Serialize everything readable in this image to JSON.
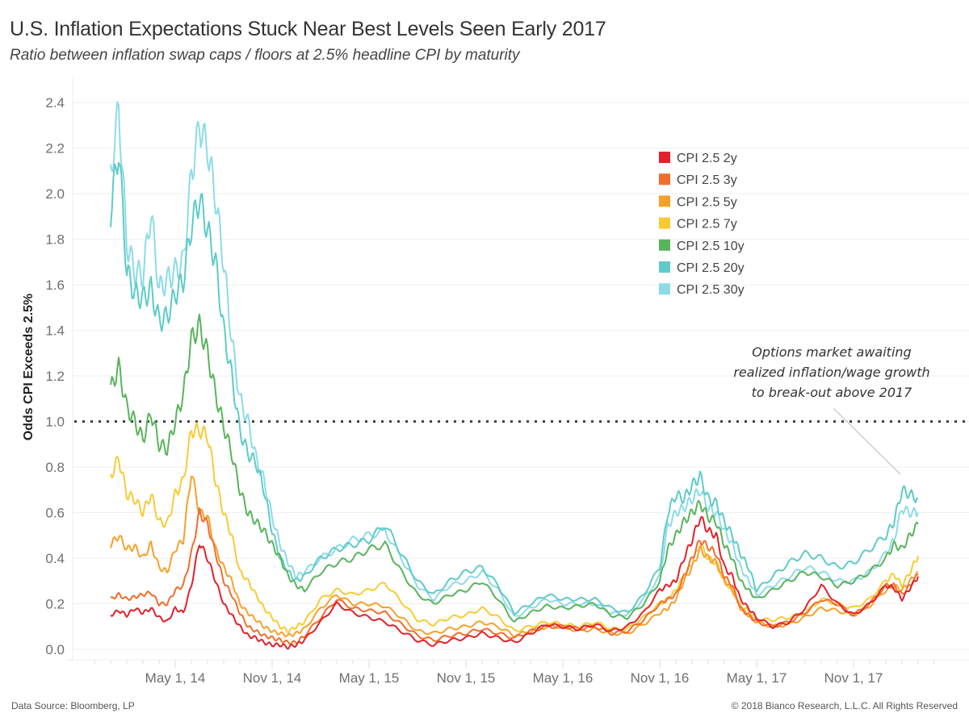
{
  "header": {
    "title": "U.S. Inflation Expectations Stuck Near Best Levels Seen Early 2017",
    "subtitle": "Ratio between inflation swap caps / floors at 2.5% headline CPI by maturity"
  },
  "footer": {
    "source": "Data Source: Bloomberg, LP",
    "copyright": "© 2018 Bianco Research, L.L.C. All Rights Reserved"
  },
  "chart_data": {
    "type": "line",
    "title": "U.S. Inflation Expectations Stuck Near Best Levels Seen Early 2017",
    "subtitle": "Ratio between inflation swap caps / floors at 2.5% headline CPI by maturity",
    "xlabel": "",
    "ylabel": "Odds CPI Exceeds 2.5%",
    "ylim": [
      0,
      2.4
    ],
    "yticks": [
      "0.0",
      "0.2",
      "0.4",
      "0.6",
      "0.8",
      "1.0",
      "1.2",
      "1.4",
      "1.6",
      "1.8",
      "2.0",
      "2.2",
      "2.4"
    ],
    "ytick_values": [
      0,
      0.2,
      0.4,
      0.6,
      0.8,
      1.0,
      1.2,
      1.4,
      1.6,
      1.8,
      2.0,
      2.2,
      2.4
    ],
    "xtick_labels": [
      "May 1, 14",
      "Nov 1, 14",
      "May 1, 15",
      "Nov 1, 15",
      "May 1, 16",
      "Nov 1, 16",
      "May 1, 17",
      "Nov 1, 17"
    ],
    "xtick_months": [
      4,
      10,
      16,
      22,
      28,
      34,
      40,
      46
    ],
    "xlim_months": [
      -0.5,
      51.5
    ],
    "x_unit": "months since Jan 2014",
    "grid": true,
    "legend_position": "top-right",
    "reference_line": {
      "value": 1.0,
      "style": "dotted"
    },
    "annotation": {
      "lines": [
        "Options market awaiting",
        "realized inflation/wage growth",
        "to break-out above 2017"
      ],
      "points_to": {
        "month": 49,
        "value": 0.68
      }
    },
    "x": [
      0,
      0.5,
      1,
      1.5,
      2,
      2.5,
      3,
      3.5,
      4,
      4.5,
      5,
      5.5,
      6,
      6.5,
      7,
      7.5,
      8,
      8.5,
      9,
      9.5,
      10,
      10.5,
      11,
      11.5,
      12,
      13,
      14,
      15,
      16,
      17,
      18,
      19,
      20,
      21,
      22,
      23,
      24,
      25,
      26,
      27,
      28,
      29,
      30,
      31,
      32,
      33,
      34,
      34.5,
      35,
      35.5,
      36,
      36.5,
      37,
      37.5,
      38,
      38.5,
      39,
      39.5,
      40,
      41,
      42,
      43,
      44,
      45,
      46,
      47,
      48,
      48.5,
      49,
      49.5,
      50
    ],
    "series": [
      {
        "name": "CPI 2.5 2y",
        "color": "#e3202b",
        "values": [
          0.15,
          0.17,
          0.15,
          0.18,
          0.16,
          0.18,
          0.14,
          0.12,
          0.18,
          0.16,
          0.28,
          0.47,
          0.4,
          0.3,
          0.2,
          0.15,
          0.1,
          0.06,
          0.05,
          0.03,
          0.02,
          0.02,
          0.01,
          0.02,
          0.04,
          0.12,
          0.2,
          0.16,
          0.14,
          0.12,
          0.08,
          0.04,
          0.02,
          0.04,
          0.05,
          0.07,
          0.05,
          0.03,
          0.07,
          0.11,
          0.1,
          0.09,
          0.11,
          0.08,
          0.1,
          0.16,
          0.26,
          0.28,
          0.3,
          0.4,
          0.48,
          0.58,
          0.52,
          0.5,
          0.36,
          0.32,
          0.22,
          0.18,
          0.14,
          0.1,
          0.12,
          0.18,
          0.28,
          0.2,
          0.15,
          0.2,
          0.28,
          0.27,
          0.22,
          0.27,
          0.32
        ]
      },
      {
        "name": "CPI 2.5 3y",
        "color": "#f26d2b",
        "values": [
          0.22,
          0.24,
          0.22,
          0.23,
          0.24,
          0.25,
          0.2,
          0.2,
          0.26,
          0.28,
          0.42,
          0.6,
          0.55,
          0.42,
          0.3,
          0.24,
          0.16,
          0.1,
          0.08,
          0.06,
          0.05,
          0.04,
          0.03,
          0.03,
          0.06,
          0.14,
          0.22,
          0.18,
          0.17,
          0.16,
          0.11,
          0.06,
          0.04,
          0.06,
          0.07,
          0.09,
          0.07,
          0.05,
          0.08,
          0.1,
          0.1,
          0.09,
          0.1,
          0.07,
          0.08,
          0.13,
          0.2,
          0.22,
          0.24,
          0.32,
          0.4,
          0.48,
          0.45,
          0.42,
          0.32,
          0.28,
          0.18,
          0.15,
          0.12,
          0.1,
          0.12,
          0.16,
          0.22,
          0.2,
          0.15,
          0.2,
          0.28,
          0.28,
          0.24,
          0.28,
          0.33
        ]
      },
      {
        "name": "CPI 2.5 5y",
        "color": "#f6a12a",
        "values": [
          0.46,
          0.5,
          0.44,
          0.45,
          0.4,
          0.46,
          0.36,
          0.34,
          0.44,
          0.48,
          0.78,
          0.6,
          0.58,
          0.44,
          0.36,
          0.3,
          0.2,
          0.16,
          0.13,
          0.1,
          0.08,
          0.07,
          0.06,
          0.07,
          0.09,
          0.18,
          0.24,
          0.2,
          0.2,
          0.19,
          0.14,
          0.08,
          0.07,
          0.09,
          0.1,
          0.12,
          0.1,
          0.06,
          0.08,
          0.1,
          0.1,
          0.08,
          0.09,
          0.07,
          0.07,
          0.11,
          0.16,
          0.18,
          0.22,
          0.3,
          0.36,
          0.44,
          0.4,
          0.38,
          0.3,
          0.26,
          0.18,
          0.15,
          0.12,
          0.1,
          0.11,
          0.14,
          0.18,
          0.17,
          0.15,
          0.19,
          0.26,
          0.28,
          0.26,
          0.3,
          0.34
        ]
      },
      {
        "name": "CPI 2.5 7y",
        "color": "#f8cb33",
        "values": [
          0.76,
          0.84,
          0.68,
          0.66,
          0.6,
          0.68,
          0.56,
          0.55,
          0.68,
          0.74,
          0.96,
          0.96,
          0.94,
          0.74,
          0.6,
          0.5,
          0.34,
          0.3,
          0.24,
          0.18,
          0.14,
          0.1,
          0.08,
          0.1,
          0.12,
          0.22,
          0.26,
          0.24,
          0.26,
          0.29,
          0.21,
          0.13,
          0.11,
          0.14,
          0.15,
          0.18,
          0.14,
          0.08,
          0.1,
          0.12,
          0.11,
          0.1,
          0.12,
          0.09,
          0.09,
          0.14,
          0.2,
          0.22,
          0.26,
          0.32,
          0.38,
          0.46,
          0.4,
          0.38,
          0.3,
          0.26,
          0.19,
          0.17,
          0.13,
          0.13,
          0.14,
          0.16,
          0.22,
          0.2,
          0.18,
          0.22,
          0.3,
          0.33,
          0.28,
          0.34,
          0.41
        ]
      },
      {
        "name": "CPI 2.5 10y",
        "color": "#59b45c",
        "values": [
          1.14,
          1.24,
          1.06,
          1.0,
          0.92,
          1.04,
          0.9,
          0.88,
          1.0,
          1.12,
          1.36,
          1.42,
          1.3,
          1.12,
          0.98,
          0.86,
          0.7,
          0.6,
          0.56,
          0.52,
          0.46,
          0.4,
          0.32,
          0.28,
          0.26,
          0.34,
          0.38,
          0.4,
          0.44,
          0.46,
          0.34,
          0.24,
          0.2,
          0.24,
          0.26,
          0.3,
          0.22,
          0.12,
          0.16,
          0.19,
          0.18,
          0.19,
          0.2,
          0.15,
          0.14,
          0.2,
          0.3,
          0.44,
          0.5,
          0.56,
          0.6,
          0.64,
          0.58,
          0.56,
          0.46,
          0.4,
          0.3,
          0.26,
          0.22,
          0.26,
          0.3,
          0.34,
          0.32,
          0.28,
          0.3,
          0.34,
          0.4,
          0.46,
          0.44,
          0.5,
          0.55
        ]
      },
      {
        "name": "CPI 2.5 20y",
        "color": "#5ecbc9",
        "values": [
          1.92,
          2.2,
          1.66,
          1.56,
          1.54,
          1.58,
          1.44,
          1.46,
          1.56,
          1.62,
          1.86,
          1.98,
          1.84,
          1.7,
          1.4,
          1.2,
          0.96,
          0.86,
          0.82,
          0.7,
          0.52,
          0.4,
          0.34,
          0.3,
          0.32,
          0.4,
          0.44,
          0.46,
          0.48,
          0.55,
          0.42,
          0.3,
          0.24,
          0.3,
          0.34,
          0.36,
          0.28,
          0.16,
          0.2,
          0.24,
          0.22,
          0.22,
          0.22,
          0.18,
          0.16,
          0.24,
          0.36,
          0.6,
          0.68,
          0.66,
          0.72,
          0.76,
          0.66,
          0.64,
          0.56,
          0.5,
          0.42,
          0.36,
          0.26,
          0.32,
          0.38,
          0.42,
          0.4,
          0.36,
          0.38,
          0.44,
          0.5,
          0.56,
          0.7,
          0.68,
          0.66
        ]
      },
      {
        "name": "CPI 2.5 30y",
        "color": "#8ddbe8",
        "values": [
          2.08,
          2.38,
          1.78,
          1.66,
          1.64,
          1.92,
          1.58,
          1.62,
          1.66,
          1.7,
          2.08,
          2.3,
          2.2,
          1.98,
          1.7,
          1.36,
          1.1,
          1.0,
          0.84,
          0.74,
          0.58,
          0.46,
          0.38,
          0.32,
          0.34,
          0.4,
          0.44,
          0.48,
          0.5,
          0.52,
          0.4,
          0.28,
          0.22,
          0.28,
          0.3,
          0.34,
          0.26,
          0.14,
          0.18,
          0.22,
          0.2,
          0.2,
          0.2,
          0.16,
          0.15,
          0.22,
          0.32,
          0.54,
          0.6,
          0.62,
          0.66,
          0.7,
          0.62,
          0.6,
          0.52,
          0.46,
          0.36,
          0.3,
          0.24,
          0.28,
          0.32,
          0.36,
          0.34,
          0.3,
          0.3,
          0.34,
          0.42,
          0.48,
          0.62,
          0.6,
          0.6
        ]
      }
    ]
  }
}
